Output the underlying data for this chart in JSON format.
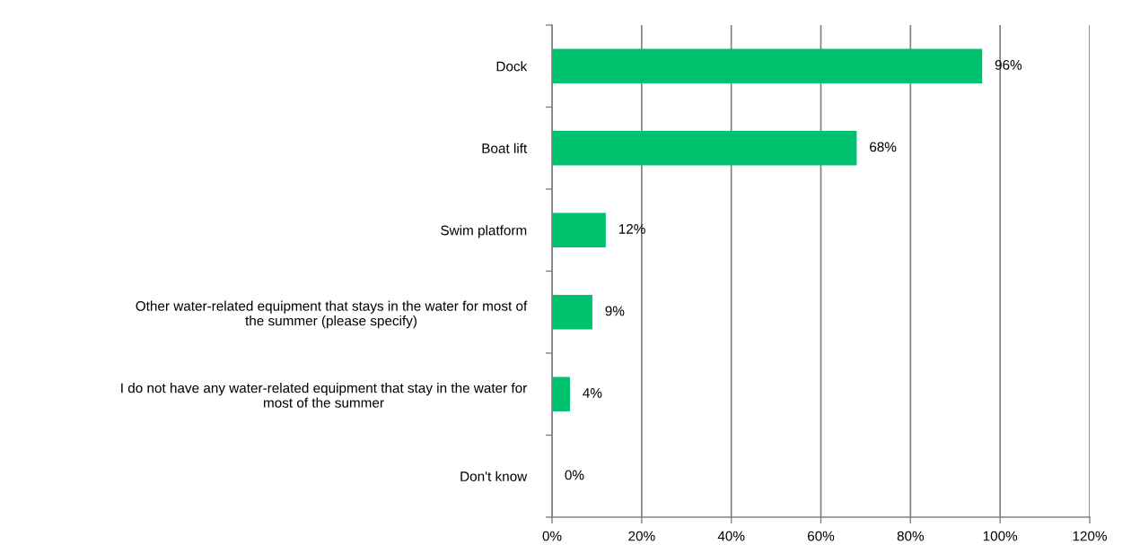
{
  "chart_data": {
    "type": "bar",
    "orientation": "horizontal",
    "categories": [
      "Dock",
      "Boat lift",
      "Swim platform",
      "Other water-related equipment that stays in the water for most of\nthe summer (please specify)",
      "I do not have any water-related equipment that stay in the water for\nmost of the summer",
      "Don't know"
    ],
    "values": [
      96,
      68,
      12,
      9,
      4,
      0
    ],
    "value_labels": [
      "96%",
      "68%",
      "12%",
      "9%",
      "4%",
      "0%"
    ],
    "color": "#00c16e",
    "xlim": [
      0,
      120
    ],
    "xticks": [
      {
        "value": 0,
        "label": "0%"
      },
      {
        "value": 20,
        "label": "20%"
      },
      {
        "value": 40,
        "label": "40%"
      },
      {
        "value": 60,
        "label": "60%"
      },
      {
        "value": 80,
        "label": "80%"
      },
      {
        "value": 100,
        "label": "100%"
      },
      {
        "value": 120,
        "label": "120%"
      }
    ],
    "grid": "x",
    "legend": false
  }
}
